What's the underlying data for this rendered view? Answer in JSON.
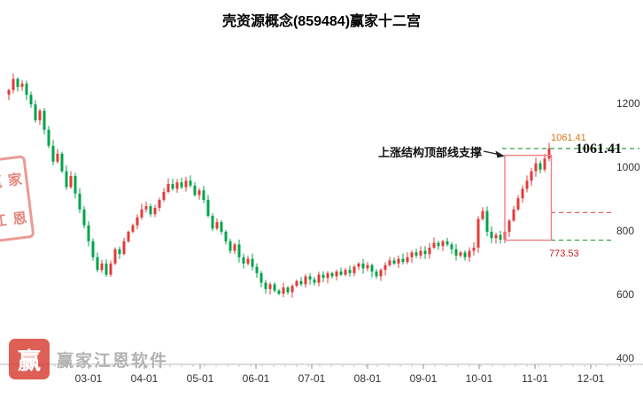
{
  "title": "壳资源概念(859484)赢家十二宫",
  "chart_data": {
    "type": "candlestick",
    "title": "壳资源概念(859484)赢家十二宫",
    "symbol": "859484",
    "name": "壳资源概念",
    "up_color": "#e33b3b",
    "down_color": "#00a44b",
    "closes": [
      1245,
      1280,
      1255,
      1265,
      1230,
      1200,
      1150,
      1180,
      1120,
      1070,
      1020,
      1045,
      990,
      940,
      975,
      920,
      870,
      820,
      770,
      720,
      680,
      700,
      665,
      700,
      745,
      730,
      770,
      800,
      820,
      845,
      870,
      880,
      855,
      875,
      900,
      925,
      950,
      935,
      955,
      940,
      960,
      945,
      915,
      930,
      900,
      850,
      810,
      830,
      800,
      770,
      740,
      760,
      720,
      700,
      715,
      690,
      670,
      640,
      620,
      635,
      615,
      605,
      625,
      610,
      630,
      645,
      635,
      660,
      650,
      640,
      665,
      655,
      670,
      660,
      675,
      665,
      680,
      670,
      690,
      700,
      685,
      695,
      675,
      660,
      680,
      695,
      710,
      700,
      715,
      705,
      720,
      735,
      725,
      740,
      730,
      750,
      765,
      755,
      770,
      760,
      745,
      725,
      735,
      720,
      740,
      750,
      840,
      865,
      800,
      780,
      790,
      775,
      800,
      835,
      870,
      905,
      935,
      960,
      990,
      1015,
      995,
      1030,
      1061.41
    ],
    "x_ticks": [
      {
        "label": "03-01",
        "i": 18
      },
      {
        "label": "04-01",
        "i": 30.6
      },
      {
        "label": "05-01",
        "i": 43.2
      },
      {
        "label": "06-01",
        "i": 55.8
      },
      {
        "label": "07-01",
        "i": 68.4
      },
      {
        "label": "08-01",
        "i": 81
      },
      {
        "label": "09-01",
        "i": 93.6
      },
      {
        "label": "10-01",
        "i": 106.2
      },
      {
        "label": "11-01",
        "i": 118.8
      },
      {
        "label": "12-01",
        "i": 131.4
      }
    ],
    "y_ticks": [
      1200,
      1000,
      800,
      600,
      400
    ],
    "ylim": [
      390,
      1320
    ],
    "grid": false,
    "legend": false,
    "last_price": 1061.41,
    "support_price": 773.53,
    "overlays": {
      "resistance_line_price": 1061.41,
      "support_line_price": 773.53,
      "mid_dashed_price": 860,
      "box": {
        "from_index": 112,
        "to_index": 122.5,
        "top_price": 1040,
        "bottom_price": 773.53
      },
      "resistance_color": "#2fa33c",
      "support_color": "#2fa33c",
      "mid_color": "#e06060",
      "box_color": "#f08080"
    }
  },
  "annotations": {
    "structure_label": "上涨结构顶部线支撑",
    "last_price_small": "1061.41",
    "last_price_big": "1061.41",
    "support_label": "773.53"
  },
  "watermark": {
    "brand": "赢家江恩软件",
    "logo_char": "赢",
    "seal": {
      "c1": "赢",
      "c2": "家",
      "c3": "江",
      "c4": "恩"
    }
  }
}
